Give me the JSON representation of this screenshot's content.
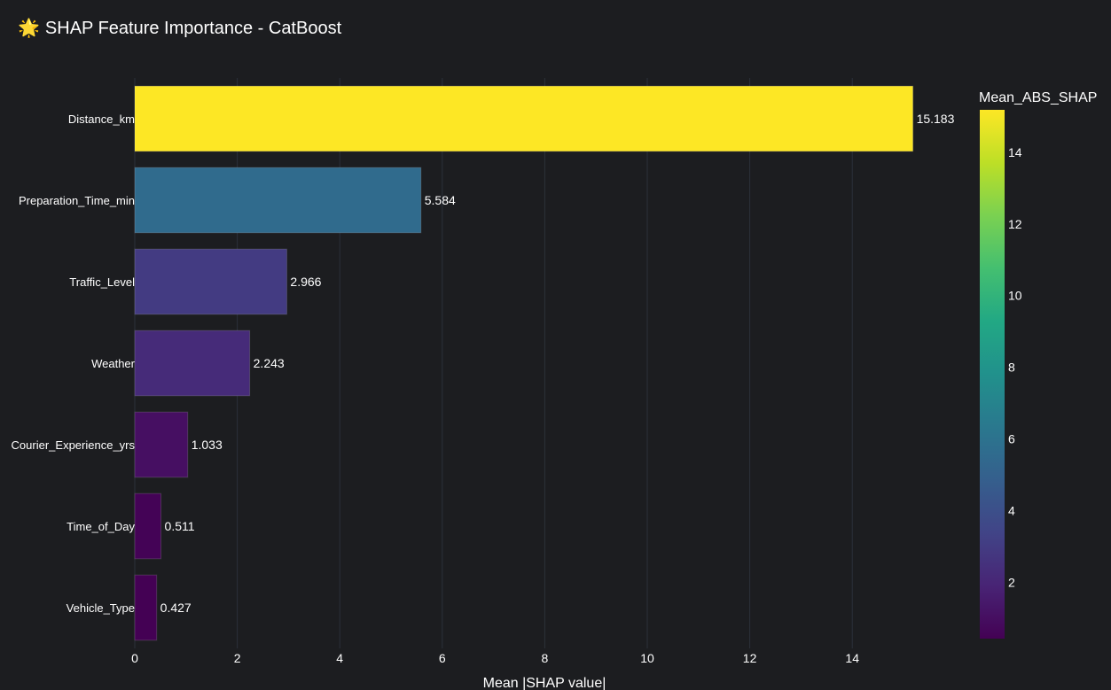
{
  "title": "SHAP Feature Importance - CatBoost",
  "title_icon": "🌟",
  "colors": {
    "background": "#1c1d20",
    "grid": "#2c313a",
    "text": "#ffffff",
    "colorscale": "viridis"
  },
  "chart_data": {
    "type": "bar",
    "orientation": "horizontal",
    "title": "SHAP Feature Importance - CatBoost",
    "xlabel": "Mean |SHAP value|",
    "ylabel": "",
    "xlim": [
      0,
      16.2
    ],
    "xticks": [
      0,
      2,
      4,
      6,
      8,
      10,
      12,
      14
    ],
    "categories": [
      "Distance_km",
      "Preparation_Time_min",
      "Traffic_Level",
      "Weather",
      "Courier_Experience_yrs",
      "Time_of_Day",
      "Vehicle_Type"
    ],
    "values": [
      15.183,
      5.584,
      2.966,
      2.243,
      1.033,
      0.511,
      0.427
    ],
    "value_labels": [
      "15.183",
      "5.584",
      "2.966",
      "2.243",
      "1.033",
      "0.511",
      "0.427"
    ],
    "colorbar": {
      "title": "Mean_ABS_SHAP",
      "range": [
        0.427,
        15.183
      ],
      "ticks": [
        2,
        4,
        6,
        8,
        10,
        12,
        14
      ]
    },
    "grid": true
  }
}
